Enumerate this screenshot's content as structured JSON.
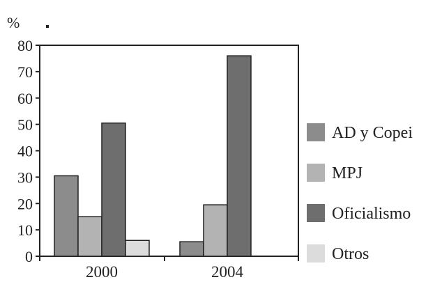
{
  "chart_data": {
    "type": "bar",
    "y_unit_label": "%",
    "categories": [
      "2000",
      "2004"
    ],
    "series": [
      {
        "name": "AD y Copei",
        "color": "#8c8c8c",
        "values": [
          30.5,
          5.5
        ]
      },
      {
        "name": "MPJ",
        "color": "#b3b3b3",
        "values": [
          15,
          19.5
        ]
      },
      {
        "name": "Oficialismo",
        "color": "#6e6e6e",
        "values": [
          50.5,
          76
        ]
      },
      {
        "name": "Otros",
        "color": "#dcdcdc",
        "values": [
          6,
          0
        ]
      }
    ],
    "ylim": [
      0,
      80
    ],
    "yticks": [
      0,
      10,
      20,
      30,
      40,
      50,
      60,
      70,
      80
    ],
    "grid": false,
    "legend": "right"
  }
}
